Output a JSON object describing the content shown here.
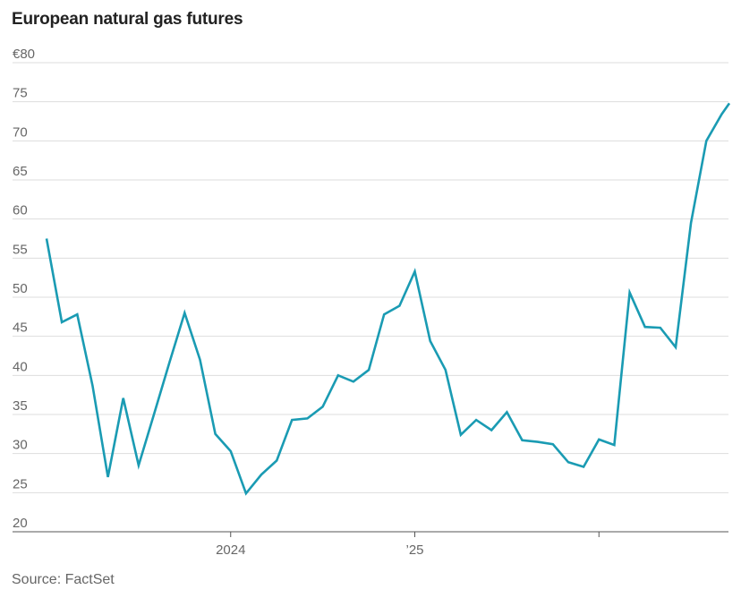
{
  "title": "European natural gas futures",
  "source": "Source: FactSet",
  "chart_data": {
    "type": "line",
    "title": "European natural gas futures",
    "xlabel": "",
    "ylabel": "",
    "ylim": [
      20,
      80
    ],
    "y_ticks": [
      20,
      25,
      30,
      35,
      40,
      45,
      50,
      55,
      60,
      65,
      70,
      75,
      80
    ],
    "y_tick_labels": [
      "20",
      "25",
      "30",
      "35",
      "40",
      "45",
      "50",
      "55",
      "60",
      "65",
      "70",
      "75",
      "€80"
    ],
    "x_ticks": [
      {
        "x": 12,
        "label": "2024"
      },
      {
        "x": 24,
        "label": "’25"
      },
      {
        "x": 36,
        "label": ""
      }
    ],
    "xlim": [
      0,
      44.5
    ],
    "grid": true,
    "color": "#1a9bb3",
    "series": [
      {
        "name": "",
        "x": [
          0,
          1,
          2,
          3,
          4,
          5,
          6,
          7,
          8,
          9,
          10,
          11,
          12,
          13,
          14,
          15,
          16,
          17,
          18,
          19,
          20,
          21,
          22,
          23,
          24,
          25,
          26,
          27,
          28,
          29,
          30,
          31,
          32,
          33,
          34,
          35,
          36,
          37,
          38,
          39,
          40,
          41,
          42,
          43,
          44,
          44.5
        ],
        "values": [
          57.5,
          46.8,
          47.8,
          38.7,
          27.0,
          37.1,
          28.5,
          35.0,
          41.6,
          48.0,
          42.0,
          32.5,
          30.3,
          24.9,
          27.3,
          29.1,
          34.3,
          34.5,
          36.0,
          40.0,
          39.2,
          40.7,
          47.8,
          48.9,
          53.3,
          44.4,
          40.7,
          32.4,
          34.3,
          33.0,
          35.3,
          31.7,
          31.5,
          31.2,
          28.9,
          28.3,
          31.8,
          31.1,
          50.6,
          46.2,
          46.1,
          43.6,
          59.5,
          70.0,
          73.4,
          74.8
        ]
      }
    ]
  }
}
